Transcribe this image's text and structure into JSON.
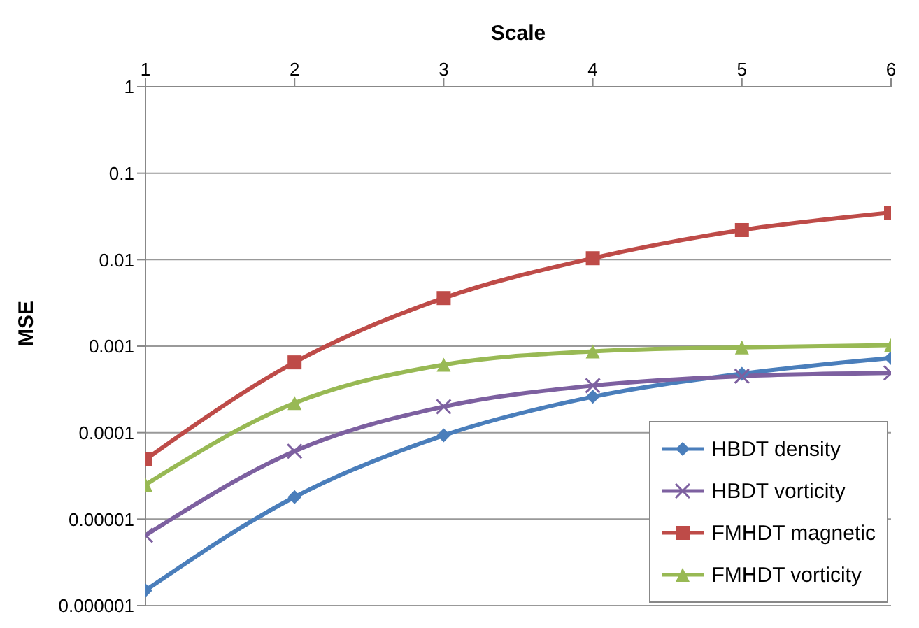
{
  "chart_data": {
    "type": "line",
    "xlabel": "Scale",
    "ylabel": "MSE",
    "x": [
      1,
      2,
      3,
      4,
      5,
      6
    ],
    "series": [
      {
        "name": "HBDT density",
        "color": "#4a7ebb",
        "marker": "diamond",
        "values": [
          1.5e-06,
          1.8e-05,
          9.3e-05,
          0.00026,
          0.00048,
          0.00073
        ]
      },
      {
        "name": "HBDT vorticity",
        "color": "#7d60a0",
        "marker": "cross",
        "values": [
          6.5e-06,
          6.1e-05,
          0.0002,
          0.00035,
          0.00045,
          0.00049
        ]
      },
      {
        "name": "FMHDT magnetic",
        "color": "#be4b48",
        "marker": "square",
        "values": [
          4.9e-05,
          0.00065,
          0.0036,
          0.0104,
          0.022,
          0.035
        ]
      },
      {
        "name": "FMHDT vorticity",
        "color": "#98b954",
        "marker": "triangle",
        "values": [
          2.5e-05,
          0.00022,
          0.00061,
          0.00087,
          0.00097,
          0.00103
        ]
      }
    ],
    "xlim": [
      1,
      6
    ],
    "xticks": [
      1,
      2,
      3,
      4,
      5,
      6
    ],
    "ylim": [
      1e-06,
      1
    ],
    "yticks": [
      {
        "value": 1e-06,
        "label": "0.000001"
      },
      {
        "value": 1e-05,
        "label": "0.00001"
      },
      0.0001,
      0.001,
      0.01,
      0.1,
      1
    ],
    "log": true,
    "grid": "y",
    "legend": "bottom right"
  }
}
